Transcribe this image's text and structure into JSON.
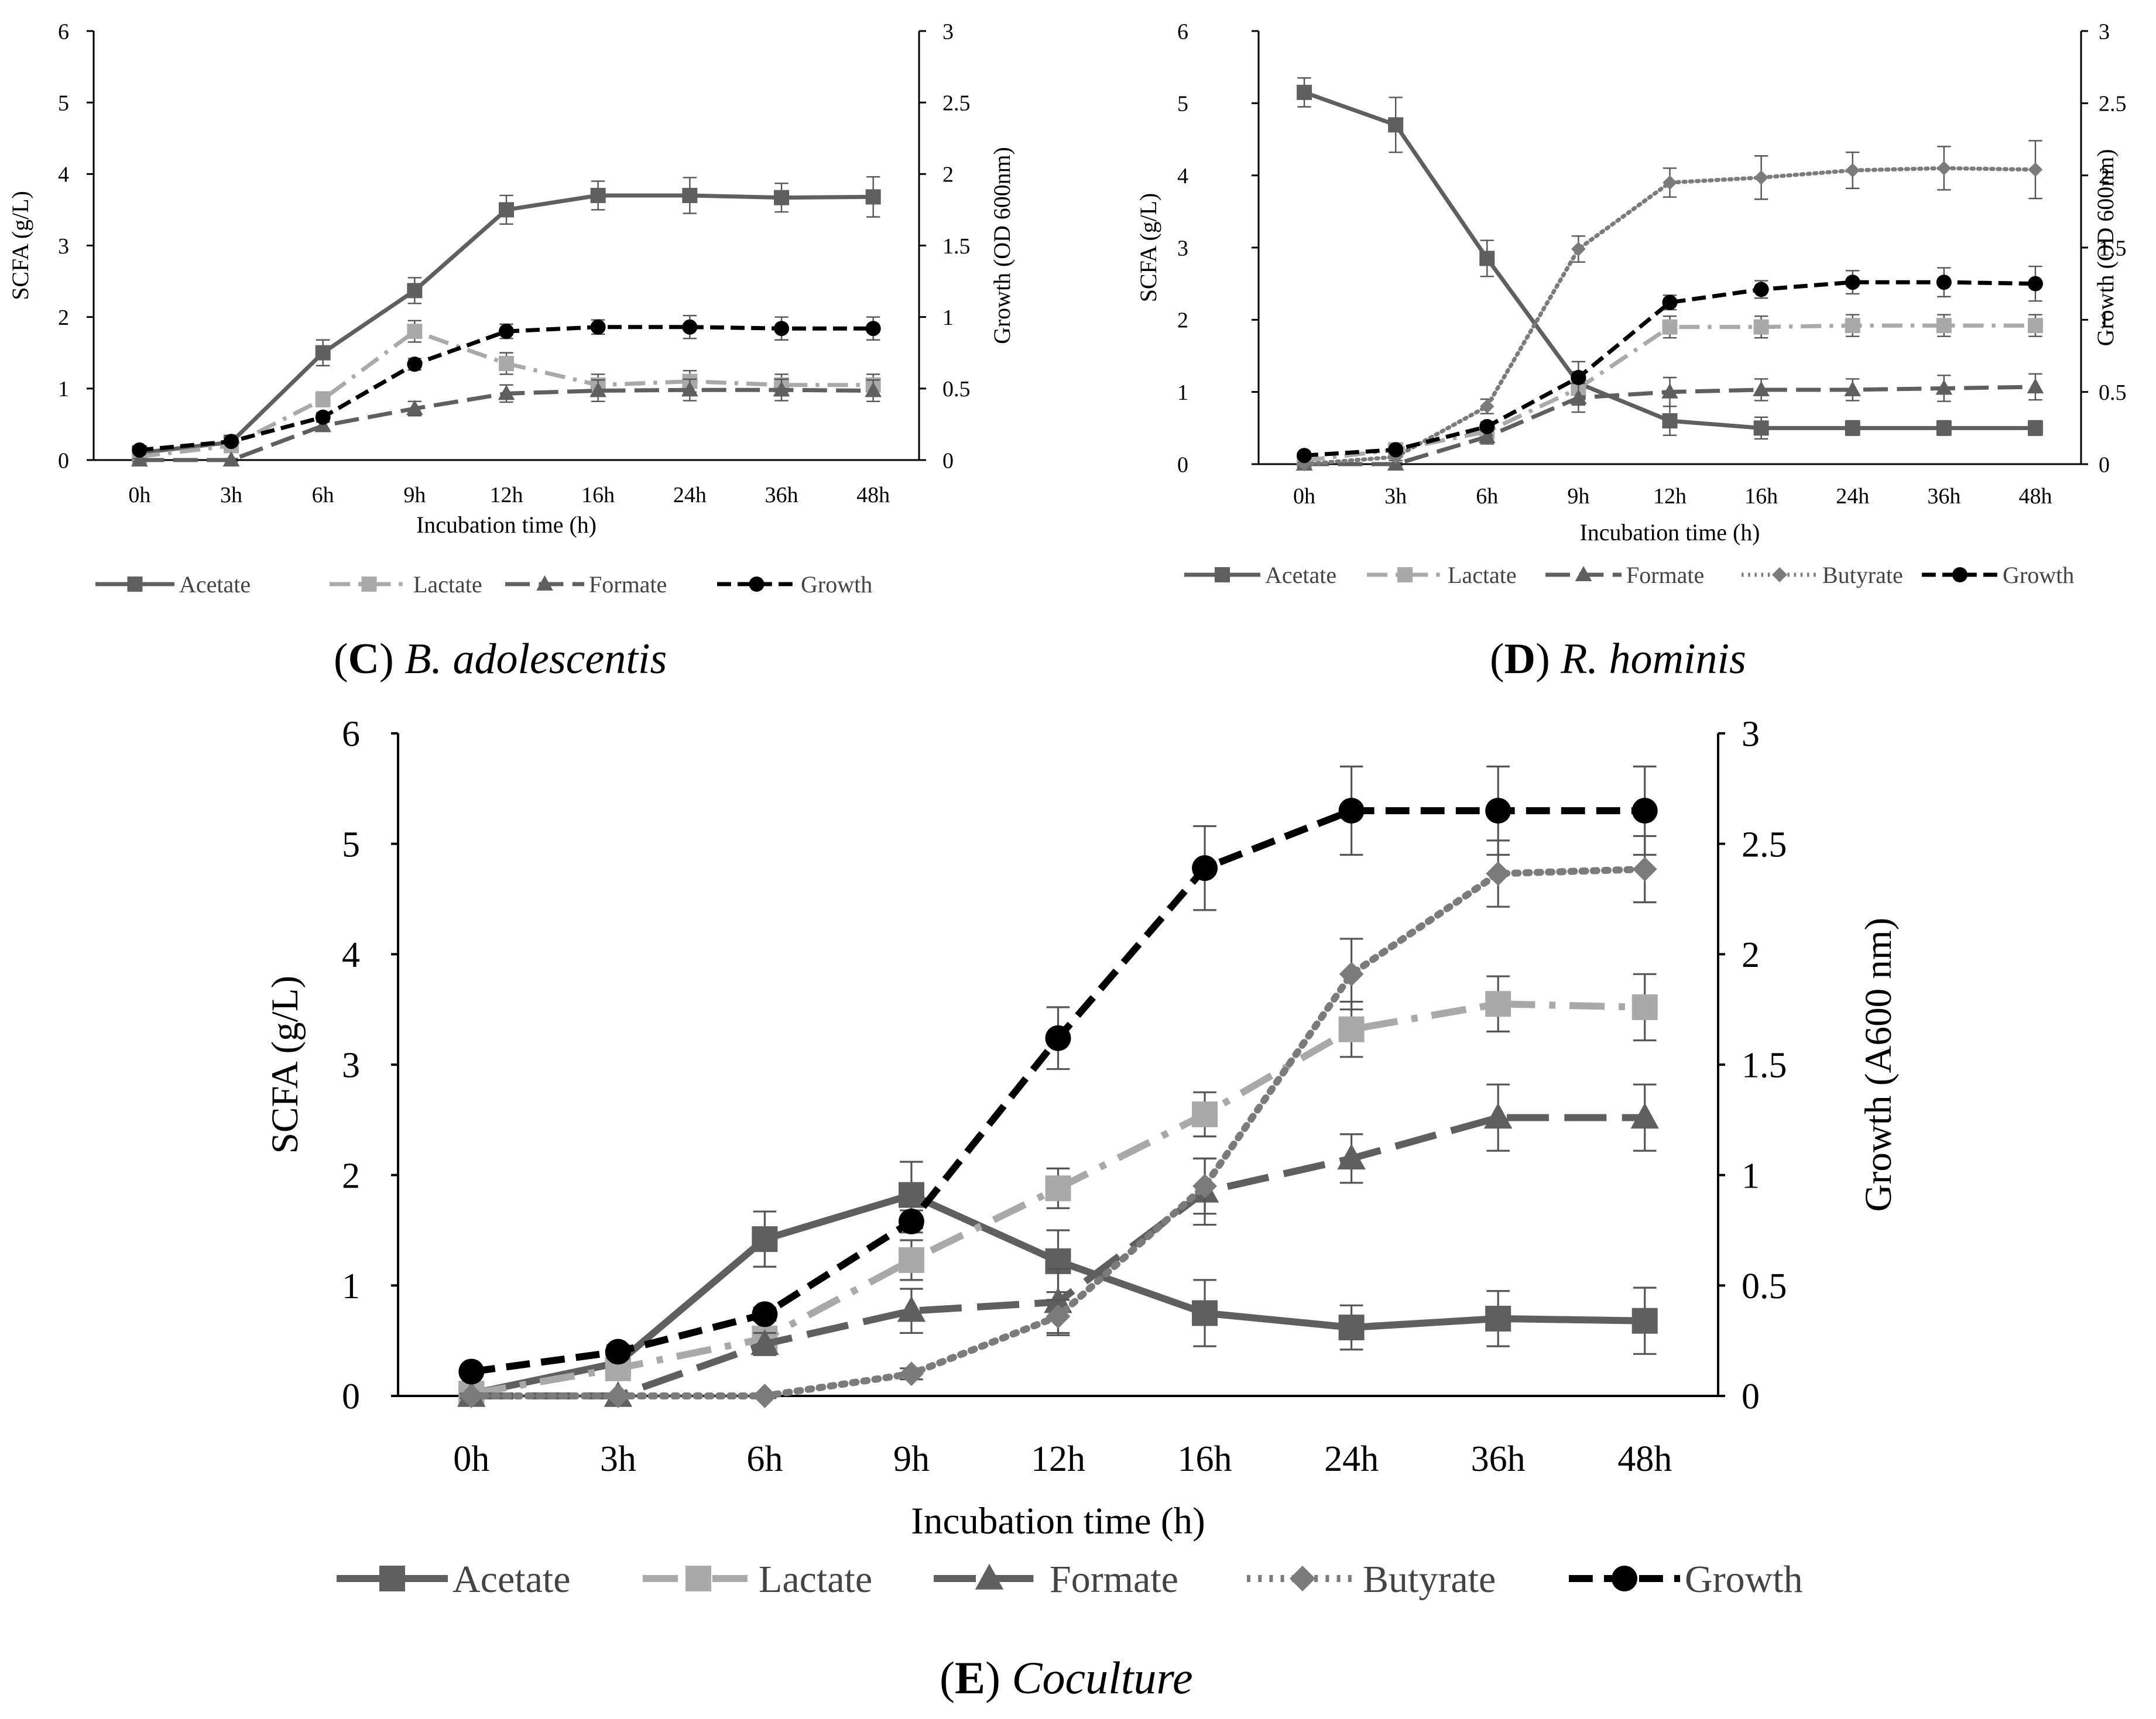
{
  "chart_data": [
    {
      "id": "C",
      "type": "line",
      "categories": [
        "0h",
        "3h",
        "6h",
        "9h",
        "12h",
        "16h",
        "24h",
        "36h",
        "48h"
      ],
      "xlabel": "Incubation time (h)",
      "ylabel": "SCFA (g/L)",
      "y2label": "Growth (OD 600nm)",
      "ylim": [
        0,
        6
      ],
      "y2lim": [
        0,
        3
      ],
      "yticks": [
        "0",
        "1",
        "2",
        "3",
        "4",
        "5",
        "6"
      ],
      "y2ticks": [
        "0",
        "0.5",
        "1",
        "1.5",
        "2",
        "2.5",
        "3"
      ],
      "caption_letter": "C",
      "caption_species": "B. adolescentis",
      "series": [
        {
          "name": "Acetate",
          "axis": "left",
          "values": [
            0.1,
            0.25,
            1.5,
            2.37,
            3.5,
            3.7,
            3.7,
            3.67,
            3.68
          ],
          "errors": [
            0.05,
            0.05,
            0.18,
            0.18,
            0.2,
            0.2,
            0.25,
            0.2,
            0.28
          ]
        },
        {
          "name": "Lactate",
          "axis": "left",
          "values": [
            0.05,
            0.2,
            0.85,
            1.8,
            1.35,
            1.05,
            1.1,
            1.05,
            1.05
          ],
          "errors": [
            0.03,
            0.05,
            0.1,
            0.15,
            0.15,
            0.15,
            0.15,
            0.15,
            0.15
          ]
        },
        {
          "name": "Formate",
          "axis": "left",
          "values": [
            0,
            0,
            0.48,
            0.72,
            0.93,
            0.97,
            0.98,
            0.98,
            0.97
          ],
          "errors": [
            0.02,
            0.02,
            0.05,
            0.1,
            0.12,
            0.15,
            0.15,
            0.15,
            0.15
          ]
        },
        {
          "name": "Growth",
          "axis": "right",
          "values": [
            0.07,
            0.13,
            0.3,
            0.67,
            0.9,
            0.93,
            0.93,
            0.92,
            0.92
          ],
          "errors": [
            0.02,
            0.02,
            0.03,
            0.04,
            0.05,
            0.05,
            0.08,
            0.08,
            0.08
          ]
        }
      ]
    },
    {
      "id": "D",
      "type": "line",
      "categories": [
        "0h",
        "3h",
        "6h",
        "9h",
        "12h",
        "16h",
        "24h",
        "36h",
        "48h"
      ],
      "xlabel": "Incubation time (h)",
      "ylabel": "SCFA (g/L)",
      "y2label": "Growth (OD 600nm)",
      "ylim": [
        0,
        6
      ],
      "y2lim": [
        0,
        3
      ],
      "yticks": [
        "0",
        "1",
        "2",
        "3",
        "4",
        "5",
        "6"
      ],
      "y2ticks": [
        "0",
        "0.5",
        "1",
        "1.5",
        "2",
        "2.5",
        "3"
      ],
      "caption_letter": "D",
      "caption_species": "R. hominis",
      "series": [
        {
          "name": "Acetate",
          "axis": "left",
          "values": [
            5.15,
            4.7,
            2.85,
            1.12,
            0.6,
            0.5,
            0.5,
            0.5,
            0.5
          ],
          "errors": [
            0.2,
            0.38,
            0.25,
            0.3,
            0.2,
            0.15,
            0.1,
            0.1,
            0.1
          ]
        },
        {
          "name": "Lactate",
          "axis": "left",
          "values": [
            0.05,
            0.2,
            0.45,
            1.05,
            1.9,
            1.9,
            1.92,
            1.92,
            1.92
          ],
          "errors": [
            0.03,
            0.05,
            0.08,
            0.15,
            0.15,
            0.15,
            0.15,
            0.15,
            0.15
          ]
        },
        {
          "name": "Formate",
          "axis": "left",
          "values": [
            0,
            0,
            0.38,
            0.92,
            1.0,
            1.03,
            1.03,
            1.05,
            1.07
          ],
          "errors": [
            0.02,
            0.02,
            0.1,
            0.2,
            0.2,
            0.15,
            0.15,
            0.18,
            0.18
          ]
        },
        {
          "name": "Butyrate",
          "axis": "left",
          "values": [
            0,
            0.1,
            0.8,
            2.98,
            3.9,
            3.97,
            4.07,
            4.1,
            4.08
          ],
          "errors": [
            0.02,
            0.05,
            0.1,
            0.18,
            0.2,
            0.3,
            0.25,
            0.3,
            0.4
          ]
        },
        {
          "name": "Growth",
          "axis": "right",
          "values": [
            0.06,
            0.1,
            0.26,
            0.6,
            1.12,
            1.21,
            1.26,
            1.26,
            1.25
          ],
          "errors": [
            0.02,
            0.02,
            0.03,
            0.04,
            0.05,
            0.06,
            0.08,
            0.1,
            0.12
          ]
        }
      ]
    },
    {
      "id": "E",
      "type": "line",
      "categories": [
        "0h",
        "3h",
        "6h",
        "9h",
        "12h",
        "16h",
        "24h",
        "36h",
        "48h"
      ],
      "xlabel": "Incubation time (h)",
      "ylabel": "SCFA (g/L)",
      "y2label": "Growth (A600 nm)",
      "ylim": [
        0,
        6
      ],
      "y2lim": [
        0,
        3
      ],
      "yticks": [
        "0",
        "1",
        "2",
        "3",
        "4",
        "5",
        "6"
      ],
      "y2ticks": [
        "0",
        "0.5",
        "1",
        "1.5",
        "2",
        "2.5",
        "3"
      ],
      "caption_letter": "E",
      "caption_species": "Coculture",
      "series": [
        {
          "name": "Acetate",
          "axis": "left",
          "values": [
            0.02,
            0.3,
            1.42,
            1.82,
            1.22,
            0.75,
            0.62,
            0.7,
            0.68
          ],
          "errors": [
            0.03,
            0.05,
            0.25,
            0.3,
            0.28,
            0.3,
            0.2,
            0.25,
            0.3
          ]
        },
        {
          "name": "Lactate",
          "axis": "left",
          "values": [
            0.02,
            0.25,
            0.52,
            1.23,
            1.88,
            2.55,
            3.32,
            3.55,
            3.52
          ],
          "errors": [
            0.03,
            0.05,
            0.1,
            0.18,
            0.18,
            0.2,
            0.25,
            0.25,
            0.3
          ]
        },
        {
          "name": "Formate",
          "axis": "left",
          "values": [
            0,
            0,
            0.47,
            0.77,
            0.85,
            1.85,
            2.15,
            2.52,
            2.52
          ],
          "errors": [
            0.02,
            0.02,
            0.1,
            0.2,
            0.3,
            0.3,
            0.22,
            0.3,
            0.3
          ]
        },
        {
          "name": "Butyrate",
          "axis": "left",
          "values": [
            0,
            0,
            0,
            0.2,
            0.72,
            1.9,
            3.82,
            4.73,
            4.77
          ],
          "errors": [
            0.02,
            0.02,
            0.02,
            0.05,
            0.15,
            0.25,
            0.32,
            0.3,
            0.3
          ]
        },
        {
          "name": "Growth",
          "axis": "right",
          "values": [
            0.11,
            0.2,
            0.37,
            0.79,
            1.62,
            2.39,
            2.65,
            2.65,
            2.65
          ],
          "errors": [
            0.02,
            0.03,
            0.03,
            0.05,
            0.14,
            0.19,
            0.2,
            0.2,
            0.2
          ]
        }
      ]
    }
  ]
}
